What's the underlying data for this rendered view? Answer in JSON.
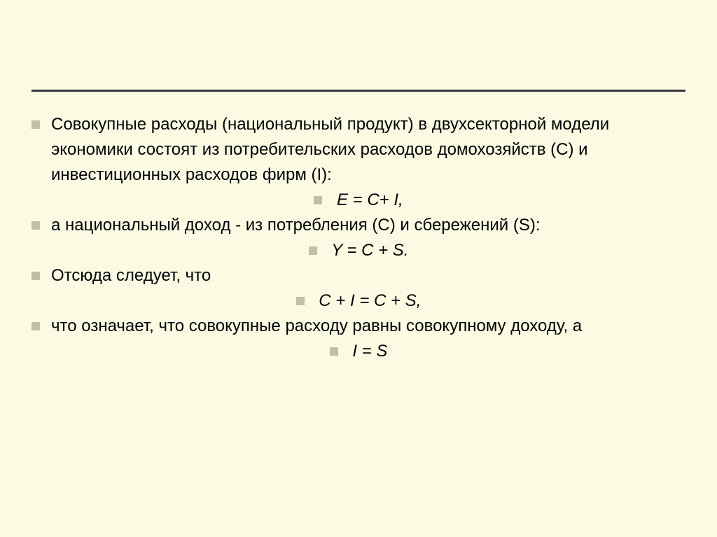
{
  "slide": {
    "background_color": "#fbfbe4",
    "bullet_color": "#c2c0a2",
    "rule_color": "#363636",
    "text_color": "#000000",
    "font_family": "Arial",
    "font_size_pt": 18
  },
  "items": {
    "p1": "Совокупные расходы (национальный продукт) в двухсекторной модели экономики состоят из потребительских расходов домохозяйств (С) и инвестиционных расходов фирм (I):",
    "eq1": " Е = С+ I,",
    "p2": " а национальный доход  - из потребления (С) и сбережений (S):",
    "eq2": "  Y = С + S.",
    "p3": " Отсюда следует, что",
    "eq3": "С + I = С + S,",
    "p4": " что означает, что совокупные расходу равны совокупному доходу, а",
    "eq4": "I = S"
  }
}
